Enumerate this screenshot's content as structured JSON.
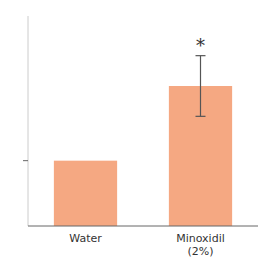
{
  "chart_data": {
    "type": "bar",
    "categories": [
      "Water",
      "Minoxidil\n(2%)"
    ],
    "values": [
      2.8,
      6.0
    ],
    "errors": [
      null,
      1.3
    ],
    "color": "#F5A882",
    "annotation": "*",
    "ylim": [
      0,
      9.0
    ],
    "yticks": [
      2.8
    ],
    "tick_labels": "x",
    "grid": false
  }
}
